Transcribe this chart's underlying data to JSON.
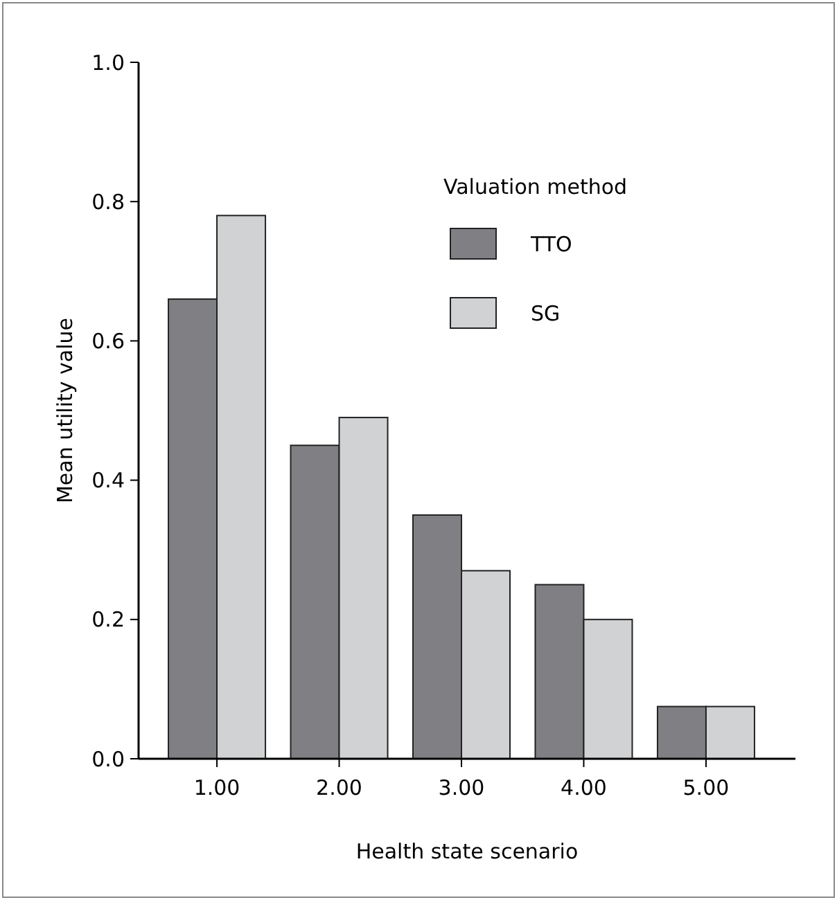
{
  "chart_data": {
    "type": "bar",
    "xlabel": "Health state scenario",
    "ylabel": "Mean utility value",
    "legend_title": "Valuation method",
    "categories": [
      "1.00",
      "2.00",
      "3.00",
      "4.00",
      "5.00"
    ],
    "series": [
      {
        "name": "TTO",
        "color": "#808084",
        "values": [
          0.66,
          0.45,
          0.35,
          0.25,
          0.075
        ]
      },
      {
        "name": "SG",
        "color": "#d1d2d4",
        "values": [
          0.78,
          0.49,
          0.27,
          0.2,
          0.075
        ]
      }
    ],
    "ylim": [
      0,
      1
    ],
    "yticks": [
      {
        "value": 0,
        "label": "0.0"
      },
      {
        "value": 0.2,
        "label": "0.2"
      },
      {
        "value": 0.4,
        "label": "0.4"
      },
      {
        "value": 0.6,
        "label": "0.6"
      },
      {
        "value": 0.8,
        "label": "0.8"
      },
      {
        "value": 1,
        "label": "1.0"
      }
    ],
    "legend": "top right"
  }
}
